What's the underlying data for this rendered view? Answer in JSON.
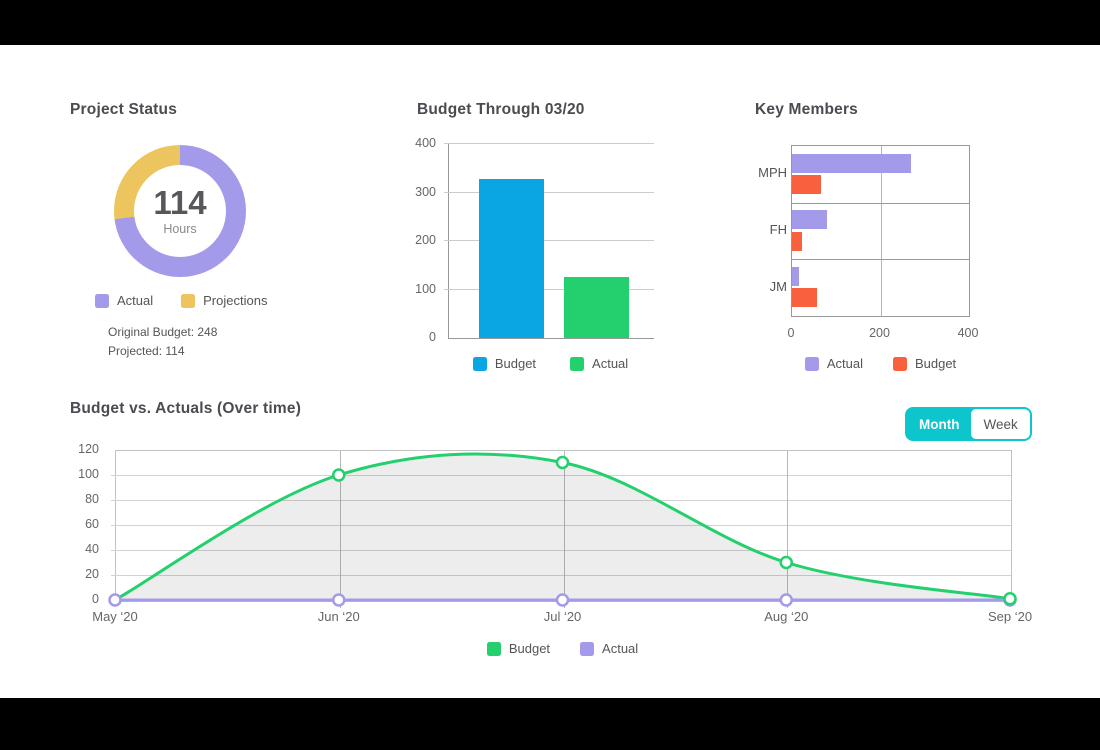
{
  "ui": {
    "frame_color": "#000000",
    "background": "#ffffff",
    "toggle": {
      "options": [
        "Month",
        "Week"
      ],
      "selected": "Month",
      "accent": "#0cc6cc"
    }
  },
  "chart_data": [
    {
      "id": "project-status",
      "type": "pie",
      "donut": true,
      "title": "Project Status",
      "center_value": "114",
      "center_label": "Hours",
      "slices": [
        {
          "label": "Actual",
          "pct": 73,
          "color": "#a39bea"
        },
        {
          "label": "Projections",
          "pct": 27,
          "color": "#edc55f"
        }
      ],
      "notes": [
        "Original Budget: 248",
        "Projected: 114"
      ]
    },
    {
      "id": "budget-through",
      "type": "bar",
      "title": "Budget Through 03/20",
      "categories": [
        "Budget",
        "Actual"
      ],
      "values": [
        328,
        125
      ],
      "colors": [
        "#0aa6e4",
        "#24d06d"
      ],
      "ylim": [
        0,
        400
      ],
      "yticks": [
        0,
        100,
        200,
        300,
        400
      ],
      "legend_position": "bottom"
    },
    {
      "id": "key-members",
      "type": "bar",
      "orientation": "horizontal",
      "title": "Key Members",
      "categories": [
        "MPH",
        "FH",
        "JM"
      ],
      "series": [
        {
          "name": "Actual",
          "color": "#a39bea",
          "values": [
            268,
            78,
            15
          ]
        },
        {
          "name": "Budget",
          "color": "#f9613e",
          "values": [
            65,
            22,
            57
          ]
        }
      ],
      "xlim": [
        0,
        400
      ],
      "xticks": [
        0,
        200,
        400
      ],
      "legend_position": "bottom"
    },
    {
      "id": "budget-vs-actuals",
      "type": "line",
      "title": "Budget vs. Actuals (Over time)",
      "x": [
        "May ‘20",
        "Jun ‘20",
        "Jul ‘20",
        "Aug ‘20",
        "Sep ‘20"
      ],
      "series": [
        {
          "name": "Budget",
          "color": "#24d06d",
          "values": [
            0,
            100,
            110,
            30,
            1
          ],
          "smooth": true,
          "area_fill": "rgba(0,0,0,0.07)"
        },
        {
          "name": "Actual",
          "color": "#a39bea",
          "values": [
            0,
            0,
            0,
            0,
            0
          ],
          "smooth": false
        }
      ],
      "ylim": [
        0,
        120
      ],
      "yticks": [
        0,
        20,
        40,
        60,
        80,
        100,
        120
      ],
      "grid": true,
      "legend_position": "bottom"
    }
  ]
}
